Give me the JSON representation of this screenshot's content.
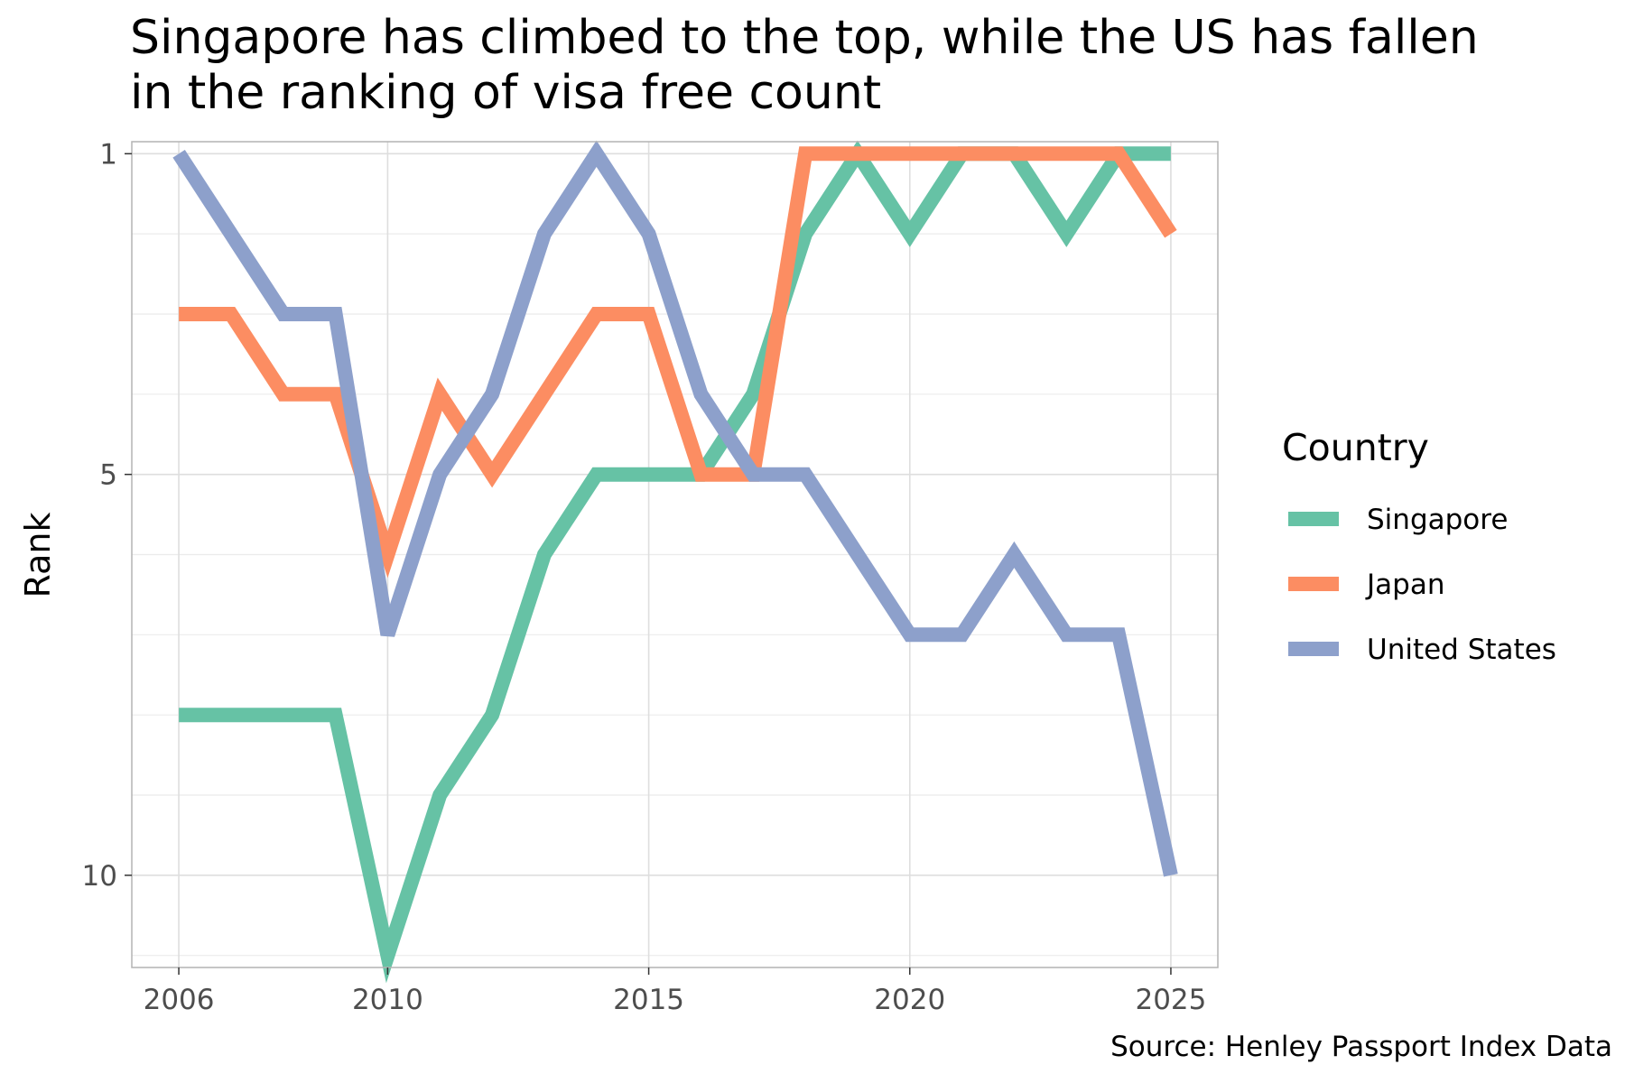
{
  "chart_data": {
    "type": "line",
    "title_lines": [
      "Singapore has climbed to the top, while the US has fallen",
      "in the ranking of visa free count"
    ],
    "xlabel": "",
    "ylabel": "Rank",
    "caption": "Source: Henley Passport Index Data",
    "xlim": [
      2005.1,
      2025.9
    ],
    "ylim": [
      1,
      11
    ],
    "y_reversed": true,
    "x_ticks": [
      2006,
      2010,
      2015,
      2020,
      2025
    ],
    "y_ticks": [
      1,
      5,
      10
    ],
    "grid": true,
    "legend_title": "Country",
    "legend_position": "right",
    "x": [
      2006,
      2007,
      2008,
      2009,
      2010,
      2011,
      2012,
      2013,
      2014,
      2015,
      2016,
      2017,
      2018,
      2019,
      2020,
      2021,
      2022,
      2023,
      2024,
      2025
    ],
    "series": [
      {
        "name": "Singapore",
        "color": "#66c2a5",
        "values": [
          8,
          8,
          8,
          8,
          11,
          9,
          8,
          6,
          5,
          5,
          5,
          4,
          2,
          1,
          2,
          1,
          1,
          2,
          1,
          1
        ]
      },
      {
        "name": "Japan",
        "color": "#fc8d62",
        "values": [
          3,
          3,
          4,
          4,
          6,
          4,
          5,
          4,
          3,
          3,
          5,
          5,
          1,
          1,
          1,
          1,
          1,
          1,
          1,
          2
        ]
      },
      {
        "name": "United States",
        "color": "#8da0cb",
        "values": [
          1,
          2,
          3,
          3,
          7,
          5,
          4,
          2,
          1,
          2,
          4,
          5,
          5,
          6,
          7,
          7,
          6,
          7,
          7,
          10
        ]
      }
    ]
  }
}
